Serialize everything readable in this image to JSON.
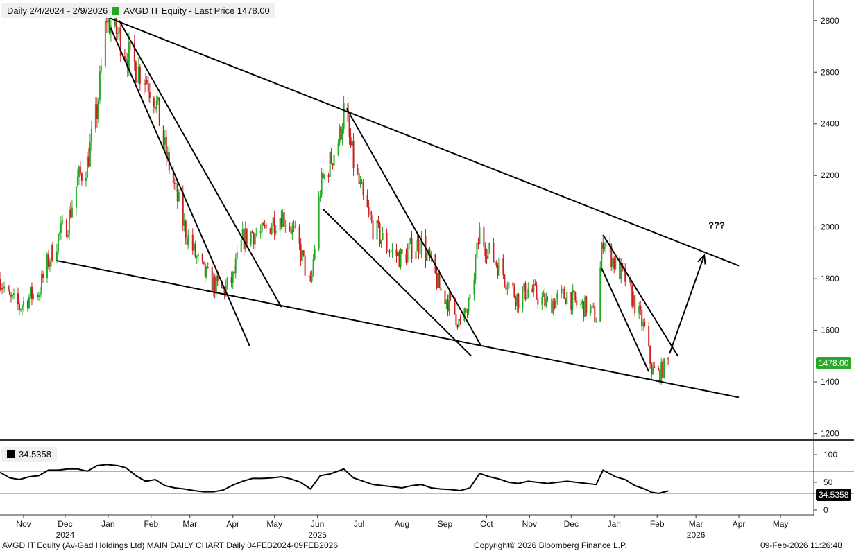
{
  "header": {
    "range": "Daily 2/4/2024 - 2/9/2026",
    "series_label": "AVGD IT Equity - Last Price 1478.00",
    "series_color": "#22aa22"
  },
  "rsi_legend": {
    "value_text": "34.5358",
    "color": "#000000"
  },
  "price_tag": "1478.00",
  "rsi_tag": "34.5358",
  "annotation": "???",
  "footer": {
    "left": "AVGD IT Equity (Av-Gad Holdings Ltd) MAIN DAILY CHART Daily 04FEB2024-09FEB2026",
    "center": "Copyright© 2026 Bloomberg Finance L.P.",
    "right": "09-Feb-2026 11:26:48"
  },
  "chart_data": [
    {
      "type": "candlestick",
      "series": [
        {
          "name": "AVGD IT Equity - Last Price"
        }
      ],
      "last_value": 1478,
      "y_ticks": [
        1200,
        1400,
        1600,
        1800,
        2000,
        2200,
        2400,
        2600,
        2800
      ],
      "ylim": [
        1180,
        2880
      ],
      "x_ticks": [
        {
          "label": "Nov",
          "date": "2024-11-01"
        },
        {
          "label": "Dec",
          "date": "2024-12-01"
        },
        {
          "label": "Jan",
          "date": "2025-01-01"
        },
        {
          "label": "Feb",
          "date": "2025-02-01"
        },
        {
          "label": "Mar",
          "date": "2025-03-01"
        },
        {
          "label": "Apr",
          "date": "2025-04-01"
        },
        {
          "label": "May",
          "date": "2025-05-01"
        },
        {
          "label": "Jun",
          "date": "2025-06-01"
        },
        {
          "label": "Jul",
          "date": "2025-07-01"
        },
        {
          "label": "Aug",
          "date": "2025-08-01"
        },
        {
          "label": "Sep",
          "date": "2025-09-01"
        },
        {
          "label": "Oct",
          "date": "2025-10-01"
        },
        {
          "label": "Nov",
          "date": "2025-11-01"
        },
        {
          "label": "Dec",
          "date": "2025-12-01"
        },
        {
          "label": "Jan",
          "date": "2026-01-01"
        },
        {
          "label": "Feb",
          "date": "2026-02-01"
        },
        {
          "label": "Mar",
          "date": "2026-03-01"
        },
        {
          "label": "Apr",
          "date": "2026-04-01"
        },
        {
          "label": "May",
          "date": "2026-05-01"
        }
      ],
      "year_labels": [
        {
          "label": "2024",
          "date": "2024-12-01"
        },
        {
          "label": "2025",
          "date": "2025-06-01"
        },
        {
          "label": "2026",
          "date": "2026-03-01"
        }
      ],
      "close_path": [
        [
          "2024-10-15",
          1800
        ],
        [
          "2024-10-22",
          1720
        ],
        [
          "2024-10-29",
          1690
        ],
        [
          "2024-11-05",
          1730
        ],
        [
          "2024-11-12",
          1750
        ],
        [
          "2024-11-19",
          1870
        ],
        [
          "2024-11-26",
          1960
        ],
        [
          "2024-12-03",
          2020
        ],
        [
          "2024-12-10",
          2180
        ],
        [
          "2024-12-17",
          2250
        ],
        [
          "2024-12-24",
          2450
        ],
        [
          "2024-12-31",
          2820
        ],
        [
          "2025-01-03",
          2780
        ],
        [
          "2025-01-08",
          2750
        ],
        [
          "2025-01-14",
          2680
        ],
        [
          "2025-01-21",
          2620
        ],
        [
          "2025-01-28",
          2580
        ],
        [
          "2025-02-04",
          2500
        ],
        [
          "2025-02-11",
          2300
        ],
        [
          "2025-02-18",
          2150
        ],
        [
          "2025-02-25",
          2000
        ],
        [
          "2025-03-04",
          1900
        ],
        [
          "2025-03-11",
          1820
        ],
        [
          "2025-03-18",
          1780
        ],
        [
          "2025-03-25",
          1750
        ],
        [
          "2025-04-01",
          1800
        ],
        [
          "2025-04-08",
          1950
        ],
        [
          "2025-04-15",
          1980
        ],
        [
          "2025-04-22",
          1970
        ],
        [
          "2025-04-29",
          2020
        ],
        [
          "2025-05-06",
          2050
        ],
        [
          "2025-05-13",
          2000
        ],
        [
          "2025-05-20",
          1900
        ],
        [
          "2025-05-27",
          1760
        ],
        [
          "2025-06-03",
          2150
        ],
        [
          "2025-06-10",
          2250
        ],
        [
          "2025-06-17",
          2350
        ],
        [
          "2025-06-20",
          2450
        ],
        [
          "2025-06-27",
          2250
        ],
        [
          "2025-07-04",
          2100
        ],
        [
          "2025-07-11",
          2000
        ],
        [
          "2025-07-18",
          1950
        ],
        [
          "2025-07-25",
          1900
        ],
        [
          "2025-08-01",
          1880
        ],
        [
          "2025-08-08",
          1920
        ],
        [
          "2025-08-15",
          1940
        ],
        [
          "2025-08-22",
          1850
        ],
        [
          "2025-08-29",
          1750
        ],
        [
          "2025-09-05",
          1700
        ],
        [
          "2025-09-12",
          1620
        ],
        [
          "2025-09-19",
          1700
        ],
        [
          "2025-09-26",
          1980
        ],
        [
          "2025-10-03",
          1900
        ],
        [
          "2025-10-10",
          1850
        ],
        [
          "2025-10-17",
          1780
        ],
        [
          "2025-10-24",
          1720
        ],
        [
          "2025-10-31",
          1760
        ],
        [
          "2025-11-07",
          1730
        ],
        [
          "2025-11-14",
          1700
        ],
        [
          "2025-11-21",
          1720
        ],
        [
          "2025-11-28",
          1740
        ],
        [
          "2025-12-05",
          1700
        ],
        [
          "2025-12-12",
          1690
        ],
        [
          "2025-12-19",
          1650
        ],
        [
          "2025-12-24",
          1960
        ],
        [
          "2026-01-02",
          1850
        ],
        [
          "2026-01-09",
          1800
        ],
        [
          "2026-01-16",
          1700
        ],
        [
          "2026-01-23",
          1600
        ],
        [
          "2026-01-28",
          1450
        ],
        [
          "2026-02-02",
          1430
        ],
        [
          "2026-02-09",
          1478
        ]
      ],
      "trendlines": [
        {
          "name": "upper-wedge-line",
          "from": [
            "2025-01-02",
            2810
          ],
          "to": [
            "2026-04-01",
            1850
          ]
        },
        {
          "name": "lower-wedge-line",
          "from": [
            "2024-11-25",
            1870
          ],
          "to": [
            "2026-04-01",
            1340
          ]
        },
        {
          "name": "decline-channel-1-left",
          "from": [
            "2025-01-03",
            2770
          ],
          "to": [
            "2025-04-13",
            1540
          ]
        },
        {
          "name": "decline-channel-1-right",
          "from": [
            "2025-01-09",
            2800
          ],
          "to": [
            "2025-05-06",
            1690
          ]
        },
        {
          "name": "decline-channel-2-left",
          "from": [
            "2025-06-05",
            2070
          ],
          "to": [
            "2025-09-20",
            1500
          ]
        },
        {
          "name": "decline-channel-2-right",
          "from": [
            "2025-06-22",
            2460
          ],
          "to": [
            "2025-09-27",
            1540
          ]
        },
        {
          "name": "decline-channel-3-left",
          "from": [
            "2025-12-23",
            1840
          ],
          "to": [
            "2026-01-26",
            1440
          ]
        },
        {
          "name": "decline-channel-3-right",
          "from": [
            "2025-12-24",
            1970
          ],
          "to": [
            "2026-02-16",
            1500
          ]
        }
      ],
      "projection_arrow": {
        "from": [
          "2026-02-10",
          1510
        ],
        "to": [
          "2026-03-07",
          1890
        ]
      },
      "annotation_at": [
        "2026-03-10",
        1995
      ]
    },
    {
      "type": "line",
      "series": [
        {
          "name": "",
          "color": "#000000"
        }
      ],
      "last_value": 34.5358,
      "y_ticks": [
        0,
        50,
        100
      ],
      "ylim": [
        -5,
        120
      ],
      "overbought_line": 70,
      "oversold_line": 30,
      "overbought_color": "#d93030",
      "oversold_color": "#2aa82a",
      "path": [
        [
          "2024-10-15",
          68
        ],
        [
          "2024-10-22",
          58
        ],
        [
          "2024-10-29",
          55
        ],
        [
          "2024-11-05",
          60
        ],
        [
          "2024-11-12",
          62
        ],
        [
          "2024-11-19",
          72
        ],
        [
          "2024-11-26",
          72
        ],
        [
          "2024-12-03",
          74
        ],
        [
          "2024-12-10",
          74
        ],
        [
          "2024-12-17",
          70
        ],
        [
          "2024-12-24",
          80
        ],
        [
          "2024-12-31",
          82
        ],
        [
          "2025-01-08",
          80
        ],
        [
          "2025-01-14",
          76
        ],
        [
          "2025-01-21",
          62
        ],
        [
          "2025-01-28",
          52
        ],
        [
          "2025-02-04",
          55
        ],
        [
          "2025-02-11",
          44
        ],
        [
          "2025-02-18",
          40
        ],
        [
          "2025-02-25",
          38
        ],
        [
          "2025-03-04",
          35
        ],
        [
          "2025-03-11",
          33
        ],
        [
          "2025-03-18",
          33
        ],
        [
          "2025-03-25",
          36
        ],
        [
          "2025-04-01",
          45
        ],
        [
          "2025-04-08",
          52
        ],
        [
          "2025-04-15",
          57
        ],
        [
          "2025-04-22",
          57
        ],
        [
          "2025-04-29",
          58
        ],
        [
          "2025-05-06",
          60
        ],
        [
          "2025-05-13",
          56
        ],
        [
          "2025-05-20",
          50
        ],
        [
          "2025-05-27",
          38
        ],
        [
          "2025-06-03",
          62
        ],
        [
          "2025-06-10",
          65
        ],
        [
          "2025-06-20",
          74
        ],
        [
          "2025-06-27",
          58
        ],
        [
          "2025-07-04",
          52
        ],
        [
          "2025-07-11",
          46
        ],
        [
          "2025-07-18",
          44
        ],
        [
          "2025-07-25",
          42
        ],
        [
          "2025-08-01",
          40
        ],
        [
          "2025-08-08",
          44
        ],
        [
          "2025-08-15",
          46
        ],
        [
          "2025-08-22",
          40
        ],
        [
          "2025-08-29",
          38
        ],
        [
          "2025-09-05",
          37
        ],
        [
          "2025-09-12",
          35
        ],
        [
          "2025-09-19",
          40
        ],
        [
          "2025-09-26",
          66
        ],
        [
          "2025-10-03",
          60
        ],
        [
          "2025-10-10",
          56
        ],
        [
          "2025-10-17",
          50
        ],
        [
          "2025-10-24",
          48
        ],
        [
          "2025-10-31",
          52
        ],
        [
          "2025-11-07",
          50
        ],
        [
          "2025-11-14",
          48
        ],
        [
          "2025-11-21",
          50
        ],
        [
          "2025-11-28",
          52
        ],
        [
          "2025-12-05",
          50
        ],
        [
          "2025-12-12",
          48
        ],
        [
          "2025-12-19",
          46
        ],
        [
          "2025-12-24",
          72
        ],
        [
          "2026-01-02",
          60
        ],
        [
          "2026-01-09",
          55
        ],
        [
          "2026-01-16",
          44
        ],
        [
          "2026-01-23",
          38
        ],
        [
          "2026-01-28",
          32
        ],
        [
          "2026-02-02",
          30
        ],
        [
          "2026-02-09",
          34.5358
        ]
      ]
    }
  ]
}
